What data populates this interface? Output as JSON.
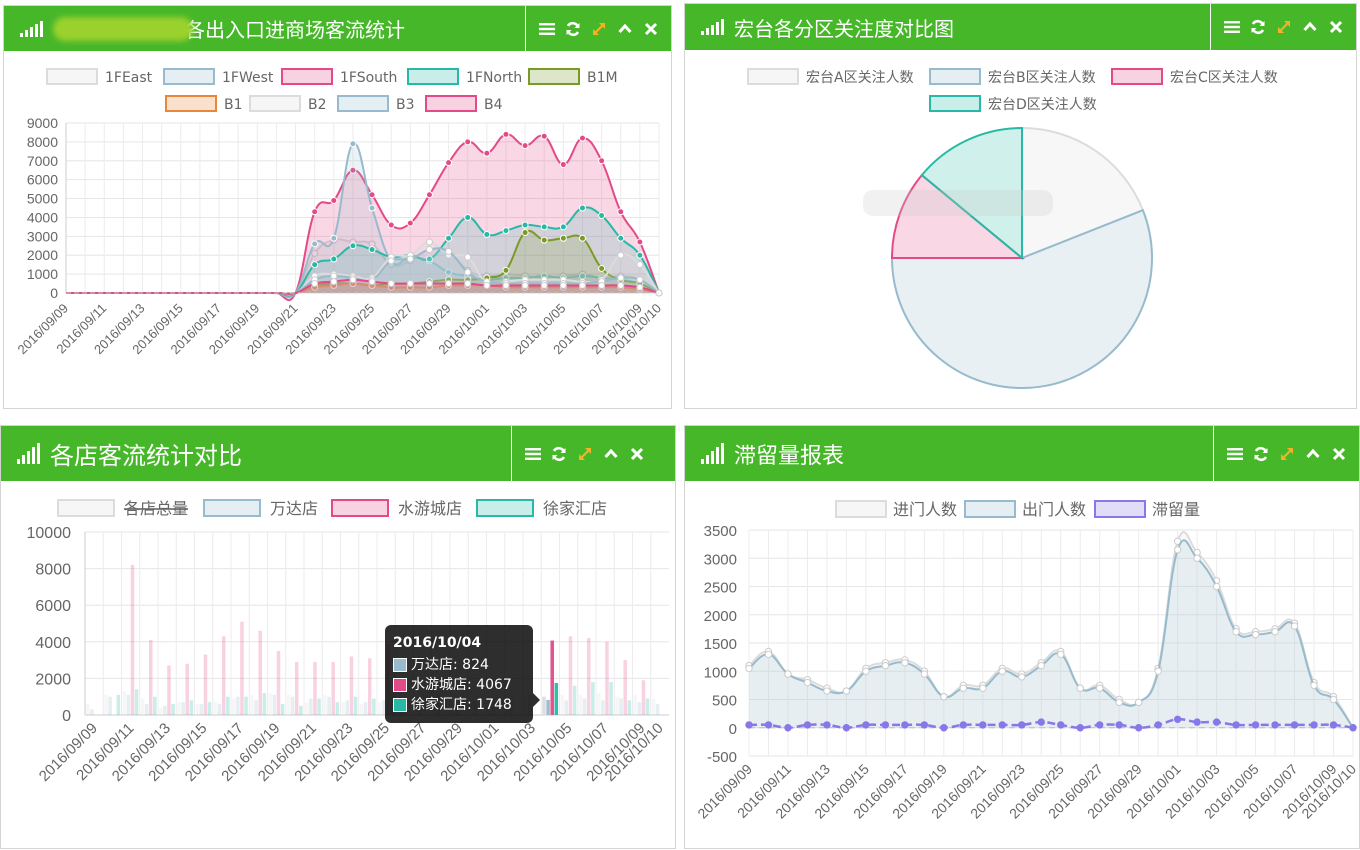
{
  "panels": {
    "p1": {
      "title": "各出入口进商场客流统计"
    },
    "p2": {
      "title": "宏台各分区关注度对比图"
    },
    "p3": {
      "title": "各店客流统计对比"
    },
    "p4": {
      "title": "滞留量报表"
    }
  },
  "toolbar_icons": [
    "menu-icon",
    "refresh-icon",
    "expand-icon",
    "collapse-icon",
    "close-icon"
  ],
  "colors": {
    "header_green": "#47b72a",
    "grey": "#dcdcdc",
    "blue": "#97bbcd",
    "pink": "#e34a87",
    "teal": "#27b9a5",
    "olive": "#7a9a26",
    "orange": "#e8873a",
    "purple": "#8877e8"
  },
  "chart_data": [
    {
      "id": "entrance-traffic",
      "type": "area",
      "x": [
        "2016/09/09",
        "2016/09/10",
        "2016/09/11",
        "2016/09/12",
        "2016/09/13",
        "2016/09/14",
        "2016/09/15",
        "2016/09/16",
        "2016/09/17",
        "2016/09/18",
        "2016/09/19",
        "2016/09/20",
        "2016/09/21",
        "2016/09/22",
        "2016/09/23",
        "2016/09/24",
        "2016/09/25",
        "2016/09/26",
        "2016/09/27",
        "2016/09/28",
        "2016/09/29",
        "2016/09/30",
        "2016/10/01",
        "2016/10/02",
        "2016/10/03",
        "2016/10/04",
        "2016/10/05",
        "2016/10/06",
        "2016/10/07",
        "2016/10/08",
        "2016/10/09",
        "2016/10/10"
      ],
      "xticks": [
        "2016/09/09",
        "2016/09/11",
        "2016/09/13",
        "2016/09/15",
        "2016/09/17",
        "2016/09/19",
        "2016/09/21",
        "2016/09/23",
        "2016/09/25",
        "2016/09/27",
        "2016/09/29",
        "2016/10/01",
        "2016/10/03",
        "2016/10/05",
        "2016/10/07",
        "2016/10/09",
        "2016/10/10"
      ],
      "ylim": [
        0,
        9000
      ],
      "yticks": [
        0,
        1000,
        2000,
        3000,
        4000,
        5000,
        6000,
        7000,
        8000,
        9000
      ],
      "legend": [
        "1FEast",
        "1FWest",
        "1FSouth",
        "1FNorth",
        "B1M",
        "B1",
        "B2",
        "B3",
        "B4"
      ],
      "series": [
        {
          "name": "1FEast",
          "color": "#dcdcdc",
          "values": [
            0,
            0,
            0,
            0,
            0,
            0,
            0,
            0,
            0,
            0,
            0,
            0,
            0,
            2100,
            2800,
            2700,
            2600,
            1500,
            1700,
            2300,
            2200,
            1200,
            900,
            1000,
            900,
            800,
            900,
            1000,
            800,
            900,
            700,
            0
          ]
        },
        {
          "name": "1FWest",
          "color": "#97bbcd",
          "values": [
            0,
            0,
            0,
            0,
            0,
            0,
            0,
            0,
            0,
            0,
            0,
            0,
            0,
            2600,
            2900,
            7900,
            4500,
            1700,
            1900,
            1700,
            1100,
            900,
            700,
            800,
            800,
            900,
            800,
            900,
            800,
            700,
            500,
            0
          ]
        },
        {
          "name": "1FSouth",
          "color": "#e34a87",
          "values": [
            0,
            0,
            0,
            0,
            0,
            0,
            0,
            0,
            0,
            0,
            0,
            0,
            0,
            4300,
            4900,
            6500,
            5200,
            3600,
            3700,
            5200,
            6900,
            8000,
            7400,
            8400,
            7800,
            8300,
            6800,
            8200,
            7000,
            4300,
            2700,
            0
          ]
        },
        {
          "name": "1FNorth",
          "color": "#27b9a5",
          "values": [
            0,
            0,
            0,
            0,
            0,
            0,
            0,
            0,
            0,
            0,
            0,
            0,
            0,
            1500,
            1800,
            2500,
            2300,
            1900,
            2000,
            1800,
            2900,
            4000,
            3100,
            3300,
            3600,
            3500,
            3500,
            4500,
            4100,
            2900,
            2000,
            0
          ]
        },
        {
          "name": "B1M",
          "color": "#7a9a26",
          "values": [
            0,
            0,
            0,
            0,
            0,
            0,
            0,
            0,
            0,
            0,
            0,
            0,
            0,
            400,
            500,
            500,
            400,
            500,
            500,
            600,
            700,
            700,
            800,
            1200,
            3200,
            2800,
            2900,
            2900,
            1300,
            700,
            500,
            0
          ]
        },
        {
          "name": "B1",
          "color": "#e8873a",
          "values": [
            0,
            0,
            0,
            0,
            0,
            0,
            0,
            0,
            0,
            0,
            0,
            0,
            0,
            300,
            400,
            500,
            400,
            300,
            300,
            300,
            400,
            400,
            400,
            300,
            300,
            300,
            300,
            300,
            300,
            300,
            200,
            0
          ]
        },
        {
          "name": "B2",
          "color": "#dcdcdc",
          "values": [
            0,
            0,
            0,
            0,
            0,
            0,
            0,
            0,
            0,
            0,
            0,
            0,
            0,
            900,
            1000,
            900,
            800,
            1900,
            2000,
            2700,
            2000,
            1900,
            500,
            600,
            700,
            700,
            700,
            600,
            700,
            2000,
            1500,
            0
          ]
        },
        {
          "name": "B3",
          "color": "#97bbcd",
          "values": [
            0,
            0,
            0,
            0,
            0,
            0,
            0,
            0,
            0,
            0,
            0,
            0,
            0,
            700,
            900,
            800,
            700,
            1700,
            1800,
            2300,
            2200,
            1100,
            600,
            500,
            500,
            500,
            500,
            500,
            600,
            800,
            700,
            0
          ]
        },
        {
          "name": "B4",
          "color": "#e34a87",
          "values": [
            0,
            0,
            0,
            0,
            0,
            0,
            0,
            0,
            0,
            0,
            0,
            0,
            0,
            500,
            600,
            700,
            600,
            500,
            500,
            500,
            500,
            500,
            400,
            400,
            400,
            400,
            400,
            400,
            400,
            400,
            300,
            0
          ]
        }
      ]
    },
    {
      "id": "zone-attention",
      "type": "pie",
      "legend": [
        "宏台A区关注人数",
        "宏台B区关注人数",
        "宏台C区关注人数",
        "宏台D区关注人数"
      ],
      "series": [
        {
          "name": "宏台A区关注人数",
          "color": "#dcdcdc",
          "value": 19
        },
        {
          "name": "宏台B区关注人数",
          "color": "#97bbcd",
          "value": 56
        },
        {
          "name": "宏台C区关注人数",
          "color": "#e34a87",
          "value": 11
        },
        {
          "name": "宏台D区关注人数",
          "color": "#27b9a5",
          "value": 14
        }
      ]
    },
    {
      "id": "store-comparison",
      "type": "bar",
      "categories": [
        "2016/09/09",
        "2016/09/10",
        "2016/09/11",
        "2016/09/12",
        "2016/09/13",
        "2016/09/14",
        "2016/09/15",
        "2016/09/16",
        "2016/09/17",
        "2016/09/18",
        "2016/09/19",
        "2016/09/20",
        "2016/09/21",
        "2016/09/22",
        "2016/09/23",
        "2016/09/24",
        "2016/09/25",
        "2016/09/26",
        "2016/09/27",
        "2016/09/28",
        "2016/09/29",
        "2016/09/30",
        "2016/10/01",
        "2016/10/02",
        "2016/10/03",
        "2016/10/04",
        "2016/10/05",
        "2016/10/06",
        "2016/10/07",
        "2016/10/08",
        "2016/10/09",
        "2016/10/10"
      ],
      "xticks": [
        "2016/09/09",
        "2016/09/11",
        "2016/09/13",
        "2016/09/15",
        "2016/09/17",
        "2016/09/19",
        "2016/09/21",
        "2016/09/23",
        "2016/09/25",
        "2016/09/27",
        "2016/09/29",
        "2016/10/01",
        "2016/10/03",
        "2016/10/05",
        "2016/10/07",
        "2016/10/09",
        "2016/10/10"
      ],
      "ylim": [
        0,
        10000
      ],
      "yticks": [
        0,
        2000,
        4000,
        6000,
        8000,
        10000
      ],
      "legend": [
        "各店总量",
        "万达店",
        "水游城店",
        "徐家汇店"
      ],
      "series": [
        {
          "name": "各店总量",
          "color": "#dcdcdc",
          "values": [
            600,
            1100,
            1300,
            900,
            400,
            700,
            600,
            700,
            900,
            1100,
            1200,
            1100,
            700,
            1100,
            700,
            600,
            700,
            800,
            500,
            1000,
            600,
            900,
            1100,
            1200,
            900,
            1000,
            1100,
            1100,
            1200,
            1000,
            1100,
            900
          ]
        },
        {
          "name": "万达店",
          "color": "#97bbcd",
          "values": [
            300,
            1000,
            1100,
            600,
            500,
            700,
            600,
            600,
            1000,
            800,
            1100,
            1000,
            900,
            1000,
            800,
            700,
            800,
            800,
            900,
            1100,
            600,
            700,
            900,
            900,
            1100,
            824,
            800,
            900,
            800,
            900,
            700,
            600
          ]
        },
        {
          "name": "水游城店",
          "color": "#e34a87",
          "values": [
            0,
            0,
            8200,
            4100,
            2700,
            2800,
            3300,
            4300,
            5100,
            4600,
            3500,
            2900,
            2900,
            2900,
            3200,
            3100,
            3900,
            0,
            0,
            0,
            0,
            0,
            0,
            0,
            0,
            4067,
            4300,
            4200,
            4000,
            3000,
            1900,
            0
          ]
        },
        {
          "name": "徐家汇店",
          "color": "#27b9a5",
          "values": [
            0,
            1100,
            1400,
            1000,
            600,
            800,
            700,
            1000,
            1000,
            1200,
            600,
            500,
            900,
            700,
            1000,
            900,
            1200,
            0,
            0,
            0,
            0,
            0,
            0,
            0,
            0,
            1748,
            1600,
            1800,
            1800,
            800,
            900,
            0
          ]
        }
      ],
      "tooltip": {
        "title": "2016/10/04",
        "rows": [
          {
            "label": "万达店: 824",
            "color": "#97bbcd"
          },
          {
            "label": "水游城店: 4067",
            "color": "#e34a87"
          },
          {
            "label": "徐家汇店: 1748",
            "color": "#27b9a5"
          }
        ]
      }
    },
    {
      "id": "retention-report",
      "type": "line",
      "x": [
        "2016/09/09",
        "2016/09/10",
        "2016/09/11",
        "2016/09/12",
        "2016/09/13",
        "2016/09/14",
        "2016/09/15",
        "2016/09/16",
        "2016/09/17",
        "2016/09/18",
        "2016/09/19",
        "2016/09/20",
        "2016/09/21",
        "2016/09/22",
        "2016/09/23",
        "2016/09/24",
        "2016/09/25",
        "2016/09/26",
        "2016/09/27",
        "2016/09/28",
        "2016/09/29",
        "2016/09/30",
        "2016/10/01",
        "2016/10/02",
        "2016/10/03",
        "2016/10/04",
        "2016/10/05",
        "2016/10/06",
        "2016/10/07",
        "2016/10/08",
        "2016/10/09",
        "2016/10/10"
      ],
      "xticks": [
        "2016/09/09",
        "2016/09/11",
        "2016/09/13",
        "2016/09/15",
        "2016/09/17",
        "2016/09/19",
        "2016/09/21",
        "2016/09/23",
        "2016/09/25",
        "2016/09/27",
        "2016/09/29",
        "2016/10/01",
        "2016/10/03",
        "2016/10/05",
        "2016/10/07",
        "2016/10/09",
        "2016/10/10"
      ],
      "ylim": [
        -500,
        3500
      ],
      "yticks": [
        -500,
        0,
        500,
        1000,
        1500,
        2000,
        2500,
        3000,
        3500
      ],
      "legend": [
        "进门人数",
        "出门人数",
        "滞留量"
      ],
      "series": [
        {
          "name": "进门人数",
          "color": "#dcdcdc",
          "values": [
            1100,
            1350,
            950,
            850,
            700,
            650,
            1050,
            1150,
            1200,
            1000,
            550,
            750,
            750,
            1050,
            950,
            1150,
            1350,
            700,
            750,
            500,
            450,
            1050,
            3300,
            3100,
            2600,
            1750,
            1700,
            1750,
            1850,
            800,
            550,
            0
          ]
        },
        {
          "name": "出门人数",
          "color": "#97bbcd",
          "values": [
            1050,
            1300,
            950,
            800,
            650,
            650,
            1000,
            1100,
            1150,
            950,
            550,
            700,
            700,
            1000,
            900,
            1100,
            1300,
            700,
            700,
            450,
            450,
            1000,
            3150,
            3000,
            2500,
            1700,
            1650,
            1700,
            1800,
            750,
            500,
            0
          ]
        },
        {
          "name": "滞留量",
          "color": "#8877e8",
          "values": [
            50,
            50,
            0,
            50,
            50,
            0,
            50,
            50,
            50,
            50,
            0,
            50,
            50,
            50,
            50,
            100,
            50,
            0,
            50,
            50,
            0,
            50,
            150,
            100,
            100,
            50,
            50,
            50,
            50,
            50,
            50,
            0
          ]
        }
      ]
    }
  ]
}
